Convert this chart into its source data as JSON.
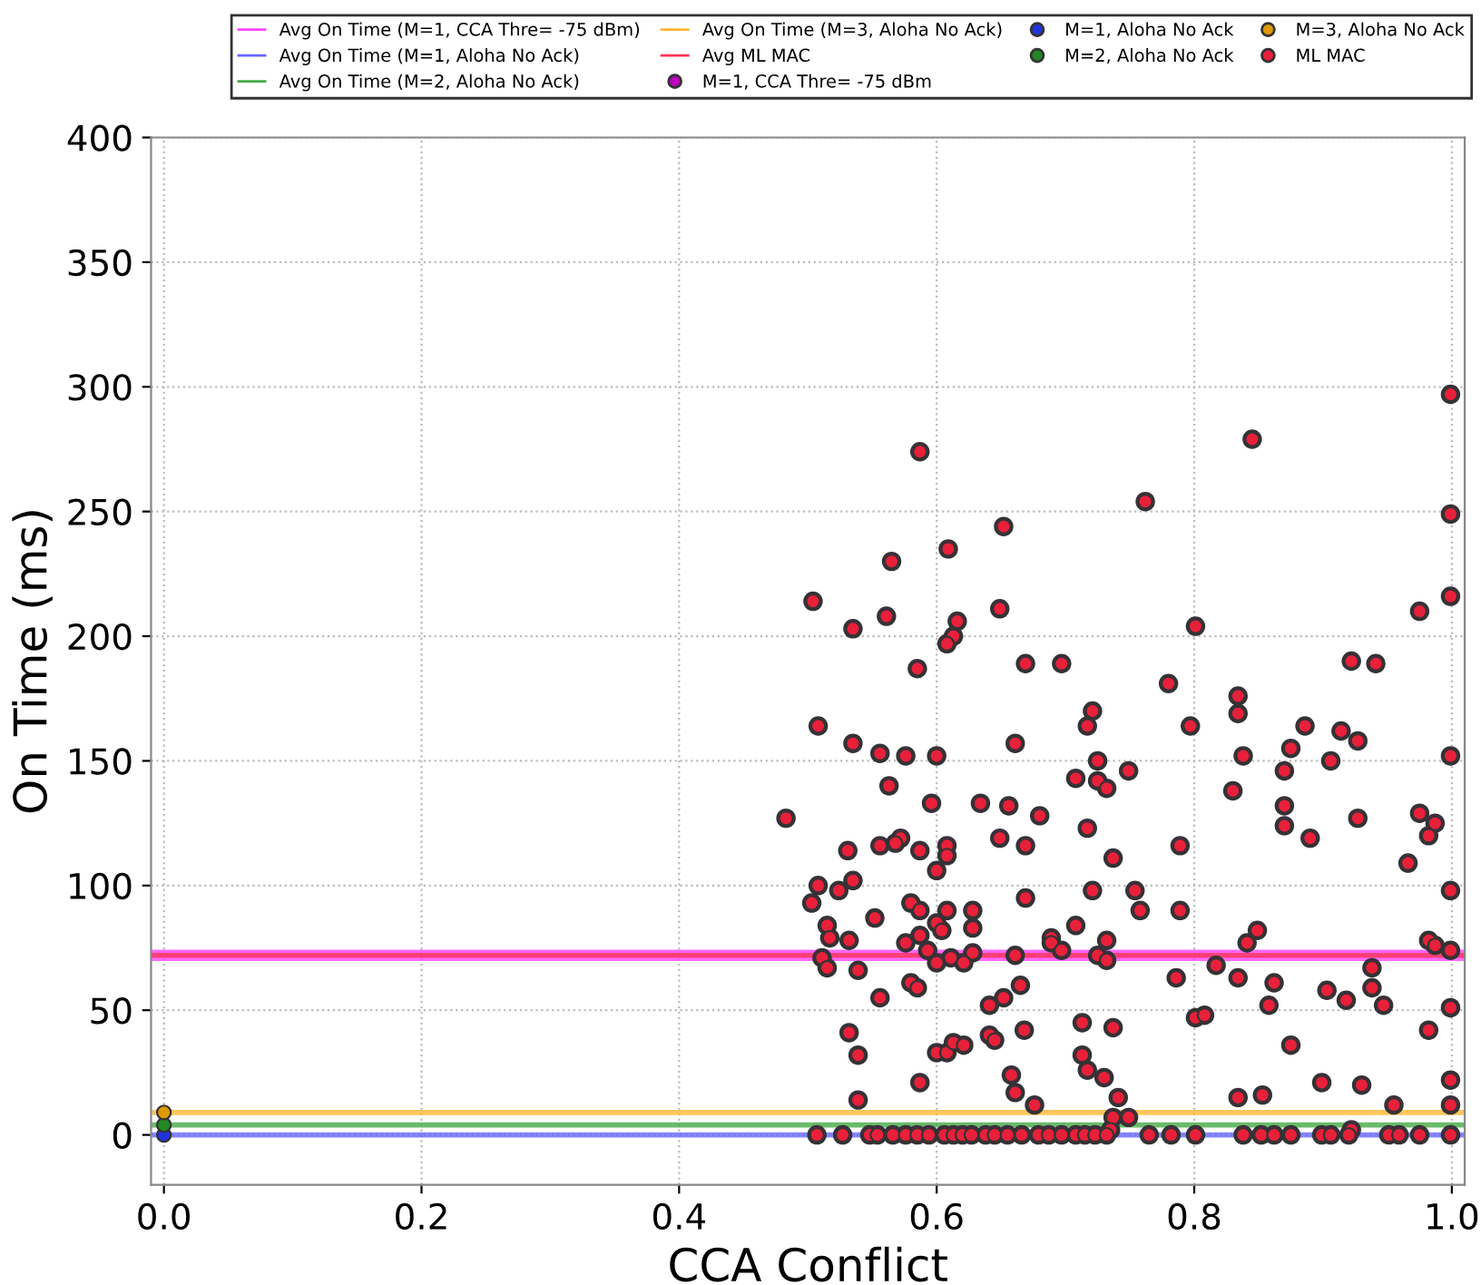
{
  "chart_data": {
    "type": "scatter",
    "xlabel": "CCA Conflict",
    "ylabel": "On Time (ms)",
    "xlim": [
      -0.01,
      1.01
    ],
    "ylim": [
      -20,
      400
    ],
    "xticks": [
      {
        "value": 0,
        "label": "0.0"
      },
      0.2,
      0.4,
      0.6,
      0.8,
      {
        "value": 1,
        "label": "1.0"
      }
    ],
    "yticks": [
      0,
      50,
      100,
      150,
      200,
      250,
      300,
      350,
      400
    ],
    "grid": true,
    "legend": "top",
    "marker": "circle",
    "series": [
      {
        "name": "Avg On Time (M=1, CCA Thre= -75 dBm)",
        "type": "line",
        "color": "#ff44ff",
        "marker": "none",
        "x": [
          -0.01,
          1.01
        ],
        "values": [
          72,
          72
        ]
      },
      {
        "name": "Avg On Time (M=1, Aloha No Ack)",
        "type": "line",
        "color": "#6666ff",
        "marker": "none",
        "x": [
          -0.01,
          1.01
        ],
        "values": [
          0,
          0
        ]
      },
      {
        "name": "Avg On Time (M=2, Aloha No Ack)",
        "type": "line",
        "color": "#44aa44",
        "marker": "none",
        "x": [
          -0.01,
          1.01
        ],
        "values": [
          4,
          4
        ]
      },
      {
        "name": "Avg On Time (M=3, Aloha No Ack)",
        "type": "line",
        "color": "#ffb833",
        "marker": "none",
        "x": [
          -0.01,
          1.01
        ],
        "values": [
          9,
          9
        ]
      },
      {
        "name": "Avg ML MAC",
        "type": "line",
        "color": "#ff3355",
        "marker": "none",
        "x": [
          -0.01,
          1.01
        ],
        "values": [
          72,
          72
        ]
      },
      {
        "name": "M=1, CCA Thre= -75 dBm",
        "color": "#bb00bb",
        "x": [
          0.587,
          0.652,
          0.609,
          0.565,
          0.504,
          0.649,
          0.561,
          0.535,
          0.616,
          0.613,
          0.608,
          0.669,
          0.697,
          0.585,
          0.721,
          0.717,
          0.508,
          0.535,
          0.661,
          0.556,
          0.576,
          0.6,
          0.725,
          0.708,
          0.725,
          0.732,
          0.563,
          0.596,
          0.483,
          0.634,
          0.656,
          0.68,
          0.649,
          0.717,
          0.572,
          0.568,
          0.556,
          0.531,
          0.608,
          0.608,
          0.587,
          0.669,
          0.737,
          0.6,
          0.535,
          0.508,
          0.524,
          0.503,
          0.669,
          0.721,
          0.58,
          0.587,
          0.608,
          0.628,
          0.552,
          0.515,
          0.6,
          0.628,
          0.604,
          0.708,
          0.517,
          0.532,
          0.587,
          0.576,
          0.689,
          0.689,
          0.732,
          0.593,
          0.697,
          0.661,
          0.628,
          0.611,
          0.725,
          0.511,
          0.515,
          0.6,
          0.621,
          0.732,
          0.539,
          0.58,
          0.585,
          0.665,
          0.556,
          0.652,
          0.641,
          0.713,
          0.532,
          0.641,
          0.645,
          0.668,
          0.737,
          0.539,
          0.6,
          0.608,
          0.613,
          0.621,
          0.713,
          0.717,
          0.658,
          0.73,
          0.587,
          0.661,
          0.676,
          0.539,
          0.741,
          0.737,
          0.735,
          0.507,
          0.527,
          0.548,
          0.554,
          0.566,
          0.576,
          0.585,
          0.594,
          0.606,
          0.613,
          0.62,
          0.627,
          0.638,
          0.645,
          0.655,
          0.666,
          0.679,
          0.687,
          0.697,
          0.708,
          0.715,
          0.723,
          0.732,
          0.999,
          0.845,
          0.762,
          0.999,
          0.999,
          0.975,
          0.801,
          0.922,
          0.941,
          0.78,
          0.834,
          0.834,
          0.797,
          0.886,
          0.914,
          0.927,
          0.875,
          0.838,
          0.906,
          0.999,
          0.749,
          0.87,
          0.83,
          0.87,
          0.975,
          0.789,
          0.87,
          0.927,
          0.987,
          0.982,
          0.89,
          0.966,
          0.999,
          0.754,
          0.758,
          0.789,
          0.849,
          0.841,
          0.982,
          0.987,
          0.999,
          0.817,
          0.938,
          0.786,
          0.834,
          0.862,
          0.903,
          0.938,
          0.918,
          0.858,
          0.947,
          0.999,
          0.801,
          0.808,
          0.982,
          0.875,
          0.999,
          0.899,
          0.93,
          0.834,
          0.853,
          0.955,
          0.999,
          0.749,
          0.922,
          0.765,
          0.782,
          0.801,
          0.838,
          0.852,
          0.862,
          0.875,
          0.899,
          0.906,
          0.92,
          0.951,
          0.959,
          0.975,
          0.999
        ],
        "values": [
          274,
          244,
          235,
          230,
          214,
          211,
          208,
          203,
          206,
          200,
          197,
          189,
          189,
          187,
          170,
          164,
          164,
          157,
          157,
          153,
          152,
          152,
          150,
          143,
          142,
          139,
          140,
          133,
          127,
          133,
          132,
          128,
          119,
          123,
          119,
          117,
          116,
          114,
          116,
          112,
          114,
          116,
          111,
          106,
          102,
          100,
          98,
          93,
          95,
          98,
          93,
          90,
          90,
          90,
          87,
          84,
          85,
          83,
          82,
          84,
          79,
          78,
          80,
          77,
          79,
          77,
          78,
          74,
          74,
          72,
          73,
          71,
          72,
          71,
          67,
          69,
          69,
          70,
          66,
          61,
          59,
          60,
          55,
          55,
          52,
          45,
          41,
          40,
          38,
          42,
          43,
          32,
          33,
          33,
          37,
          36,
          32,
          26,
          24,
          23,
          21,
          17,
          12,
          14,
          15,
          7,
          2,
          0,
          0,
          0,
          0,
          0,
          0,
          0,
          0,
          0,
          0,
          0,
          0,
          0,
          0,
          0,
          0,
          0,
          0,
          0,
          0,
          0,
          0,
          0,
          297,
          279,
          254,
          249,
          216,
          210,
          204,
          190,
          189,
          181,
          176,
          169,
          164,
          164,
          162,
          158,
          155,
          152,
          150,
          152,
          146,
          146,
          138,
          132,
          129,
          116,
          124,
          127,
          125,
          120,
          119,
          109,
          98,
          98,
          90,
          90,
          82,
          77,
          78,
          76,
          74,
          68,
          67,
          63,
          63,
          61,
          58,
          59,
          54,
          52,
          52,
          51,
          47,
          48,
          42,
          36,
          22,
          21,
          20,
          15,
          16,
          12,
          12,
          7,
          2,
          0,
          0,
          0,
          0,
          0,
          0,
          0,
          0,
          0,
          0,
          0,
          0,
          0,
          0
        ]
      },
      {
        "name": "M=1, Aloha No Ack",
        "color": "#2233dd",
        "x": [
          0
        ],
        "values": [
          0
        ]
      },
      {
        "name": "M=2, Aloha No Ack",
        "color": "#228822",
        "x": [
          0
        ],
        "values": [
          4
        ]
      },
      {
        "name": "M=3, Aloha No Ack",
        "color": "#dd9900",
        "x": [
          0
        ],
        "values": [
          9
        ]
      },
      {
        "name": "ML MAC",
        "color": "#e8203a",
        "x": [
          0.587,
          0.652,
          0.609,
          0.565,
          0.504,
          0.649,
          0.561,
          0.535,
          0.616,
          0.613,
          0.608,
          0.669,
          0.697,
          0.585,
          0.721,
          0.717,
          0.508,
          0.535,
          0.661,
          0.556,
          0.576,
          0.6,
          0.725,
          0.708,
          0.725,
          0.732,
          0.563,
          0.596,
          0.483,
          0.634,
          0.656,
          0.68,
          0.649,
          0.717,
          0.572,
          0.568,
          0.556,
          0.531,
          0.608,
          0.608,
          0.587,
          0.669,
          0.737,
          0.6,
          0.535,
          0.508,
          0.524,
          0.503,
          0.669,
          0.721,
          0.58,
          0.587,
          0.608,
          0.628,
          0.552,
          0.515,
          0.6,
          0.628,
          0.604,
          0.708,
          0.517,
          0.532,
          0.587,
          0.576,
          0.689,
          0.689,
          0.732,
          0.593,
          0.697,
          0.661,
          0.628,
          0.611,
          0.725,
          0.511,
          0.515,
          0.6,
          0.621,
          0.732,
          0.539,
          0.58,
          0.585,
          0.665,
          0.556,
          0.652,
          0.641,
          0.713,
          0.532,
          0.641,
          0.645,
          0.668,
          0.737,
          0.539,
          0.6,
          0.608,
          0.613,
          0.621,
          0.713,
          0.717,
          0.658,
          0.73,
          0.587,
          0.661,
          0.676,
          0.539,
          0.741,
          0.737,
          0.735,
          0.507,
          0.527,
          0.548,
          0.554,
          0.566,
          0.576,
          0.585,
          0.594,
          0.606,
          0.613,
          0.62,
          0.627,
          0.638,
          0.645,
          0.655,
          0.666,
          0.679,
          0.687,
          0.697,
          0.708,
          0.715,
          0.723,
          0.732,
          0.999,
          0.845,
          0.762,
          0.999,
          0.999,
          0.975,
          0.801,
          0.922,
          0.941,
          0.78,
          0.834,
          0.834,
          0.797,
          0.886,
          0.914,
          0.927,
          0.875,
          0.838,
          0.906,
          0.999,
          0.749,
          0.87,
          0.83,
          0.87,
          0.975,
          0.789,
          0.87,
          0.927,
          0.987,
          0.982,
          0.89,
          0.966,
          0.999,
          0.754,
          0.758,
          0.789,
          0.849,
          0.841,
          0.982,
          0.987,
          0.999,
          0.817,
          0.938,
          0.786,
          0.834,
          0.862,
          0.903,
          0.938,
          0.918,
          0.858,
          0.947,
          0.999,
          0.801,
          0.808,
          0.982,
          0.875,
          0.999,
          0.899,
          0.93,
          0.834,
          0.853,
          0.955,
          0.999,
          0.749,
          0.922,
          0.765,
          0.782,
          0.801,
          0.838,
          0.852,
          0.862,
          0.875,
          0.899,
          0.906,
          0.92,
          0.951,
          0.959,
          0.975,
          0.999
        ],
        "values": [
          274,
          244,
          235,
          230,
          214,
          211,
          208,
          203,
          206,
          200,
          197,
          189,
          189,
          187,
          170,
          164,
          164,
          157,
          157,
          153,
          152,
          152,
          150,
          143,
          142,
          139,
          140,
          133,
          127,
          133,
          132,
          128,
          119,
          123,
          119,
          117,
          116,
          114,
          116,
          112,
          114,
          116,
          111,
          106,
          102,
          100,
          98,
          93,
          95,
          98,
          93,
          90,
          90,
          90,
          87,
          84,
          85,
          83,
          82,
          84,
          79,
          78,
          80,
          77,
          79,
          77,
          78,
          74,
          74,
          72,
          73,
          71,
          72,
          71,
          67,
          69,
          69,
          70,
          66,
          61,
          59,
          60,
          55,
          55,
          52,
          45,
          41,
          40,
          38,
          42,
          43,
          32,
          33,
          33,
          37,
          36,
          32,
          26,
          24,
          23,
          21,
          17,
          12,
          14,
          15,
          7,
          2,
          0,
          0,
          0,
          0,
          0,
          0,
          0,
          0,
          0,
          0,
          0,
          0,
          0,
          0,
          0,
          0,
          0,
          0,
          0,
          0,
          0,
          0,
          0,
          297,
          279,
          254,
          249,
          216,
          210,
          204,
          190,
          189,
          181,
          176,
          169,
          164,
          164,
          162,
          158,
          155,
          152,
          150,
          152,
          146,
          146,
          138,
          132,
          129,
          116,
          124,
          127,
          125,
          120,
          119,
          109,
          98,
          98,
          90,
          90,
          82,
          77,
          78,
          76,
          74,
          68,
          67,
          63,
          63,
          61,
          58,
          59,
          54,
          52,
          52,
          51,
          47,
          48,
          42,
          36,
          22,
          21,
          20,
          15,
          16,
          12,
          12,
          7,
          2,
          0,
          0,
          0,
          0,
          0,
          0,
          0,
          0,
          0,
          0,
          0,
          0,
          0,
          0
        ]
      }
    ]
  }
}
